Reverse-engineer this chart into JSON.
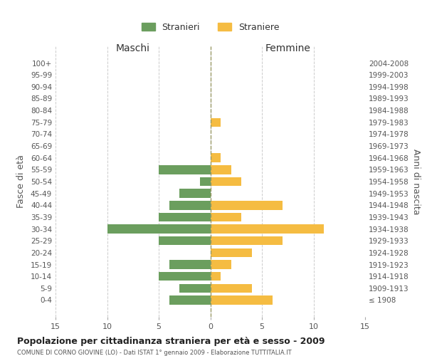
{
  "age_groups": [
    "100+",
    "95-99",
    "90-94",
    "85-89",
    "80-84",
    "75-79",
    "70-74",
    "65-69",
    "60-64",
    "55-59",
    "50-54",
    "45-49",
    "40-44",
    "35-39",
    "30-34",
    "25-29",
    "20-24",
    "15-19",
    "10-14",
    "5-9",
    "0-4"
  ],
  "birth_years": [
    "≤ 1908",
    "1909-1913",
    "1914-1918",
    "1919-1923",
    "1924-1928",
    "1929-1933",
    "1934-1938",
    "1939-1943",
    "1944-1948",
    "1949-1953",
    "1954-1958",
    "1959-1963",
    "1964-1968",
    "1969-1973",
    "1974-1978",
    "1979-1983",
    "1984-1988",
    "1989-1993",
    "1994-1998",
    "1999-2003",
    "2004-2008"
  ],
  "males": [
    0,
    0,
    0,
    0,
    0,
    0,
    0,
    0,
    0,
    5,
    1,
    3,
    4,
    5,
    10,
    5,
    0,
    4,
    5,
    3,
    4
  ],
  "females": [
    0,
    0,
    0,
    0,
    0,
    1,
    0,
    0,
    1,
    2,
    3,
    0,
    7,
    3,
    11,
    7,
    4,
    2,
    1,
    4,
    6
  ],
  "male_color": "#6b9e5e",
  "female_color": "#f5bc42",
  "title": "Popolazione per cittadinanza straniera per età e sesso - 2009",
  "subtitle": "COMUNE DI CORNO GIOVINE (LO) - Dati ISTAT 1° gennaio 2009 - Elaborazione TUTTITALIA.IT",
  "xlabel_left": "Maschi",
  "xlabel_right": "Femmine",
  "ylabel_left": "Fasce di età",
  "ylabel_right": "Anni di nascita",
  "legend_male": "Stranieri",
  "legend_female": "Straniere",
  "xlim": 15,
  "background_color": "#ffffff",
  "grid_color": "#cccccc",
  "bar_height": 0.75
}
